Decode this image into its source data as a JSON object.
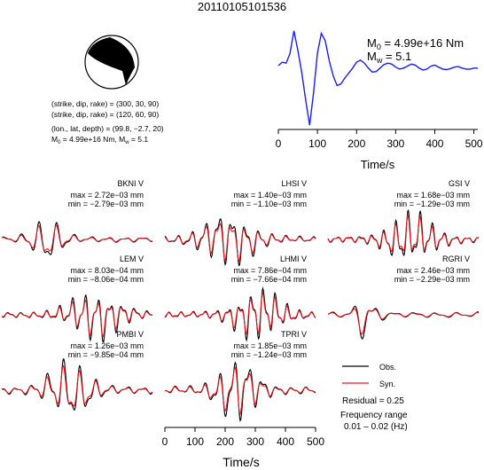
{
  "title": "20110105101536",
  "info": {
    "line1": "(strike, dip, rake) = (300, 30, 90)",
    "line2": "(strike, dip, rake) = (120, 60, 90)",
    "line3": "(lon., lat, depth) = (99.8, −2.7, 20)",
    "line4_m0": "M",
    "line4_m0_sub": "0",
    "line4_m0_val": " = 4.99e+16 Nm, M",
    "line4_mw_sub": "w",
    "line4_mw_val": " = 5.1"
  },
  "stf": {
    "m0_label": "M",
    "m0_sub": "0",
    "m0_val": " = 4.99e+16 Nm",
    "mw_label": "M",
    "mw_sub": "w",
    "mw_val": " = 5.1",
    "xlabel": "Time/s",
    "ticks": [
      "0",
      "100",
      "200",
      "300",
      "400",
      "500"
    ]
  },
  "bottom_axis": {
    "xlabel": "Time/s",
    "ticks": [
      "0",
      "100",
      "200",
      "300",
      "400",
      "500"
    ]
  },
  "legend": {
    "obs": "Obs.",
    "syn": "Syn.",
    "residual": "Residual = 0.25",
    "freq_line1": "Frequency range",
    "freq_line2": "0.01 – 0.02 (Hz)"
  },
  "colors": {
    "obs": "#000000",
    "syn": "#e8141e",
    "stf": "#1a1aff"
  },
  "chart_data": [
    {
      "type": "line",
      "title": "",
      "xlabel": "Time/s",
      "ylabel": "",
      "xlim": [
        0,
        510
      ],
      "series": [
        {
          "x": [
            0,
            10,
            20,
            30,
            40,
            50,
            60,
            70,
            80,
            90,
            100,
            110,
            120,
            130,
            140,
            150,
            160,
            170,
            180,
            190,
            200,
            210,
            220,
            230,
            240,
            250,
            260,
            270,
            280,
            290,
            300,
            310,
            320,
            330,
            340,
            350,
            360,
            370,
            380,
            390,
            400,
            410,
            420,
            430,
            440,
            450,
            460,
            470,
            480,
            490,
            500,
            510
          ],
          "y": [
            0.25,
            0.32,
            0.3,
            0.5,
            0.95,
            0.55,
            0.1,
            -0.45,
            -0.95,
            -0.3,
            0.5,
            0.9,
            0.75,
            0.35,
            0.05,
            -0.15,
            -0.12,
            0.0,
            0.1,
            0.2,
            0.32,
            0.36,
            0.3,
            0.2,
            0.12,
            0.13,
            0.2,
            0.27,
            0.3,
            0.28,
            0.22,
            0.18,
            0.2,
            0.24,
            0.28,
            0.26,
            0.2,
            0.16,
            0.18,
            0.24,
            0.26,
            0.22,
            0.18,
            0.17,
            0.19,
            0.22,
            0.23,
            0.2,
            0.18,
            0.18,
            0.2,
            0.2
          ]
        }
      ]
    },
    {
      "type": "line",
      "station": "BKNI V",
      "max": "max = 2.72e−03 mm",
      "min": "min = −2.79e−03 mm"
    },
    {
      "type": "line",
      "station": "LHSI V",
      "max": "max = 1.40e−03 mm",
      "min": "min = −1.10e−03 mm"
    },
    {
      "type": "line",
      "station": "GSI V",
      "max": "max = 1.68e−03 mm",
      "min": "min = −1.29e−03 mm"
    },
    {
      "type": "line",
      "station": "LEM V",
      "max": "max = 8.03e−04 mm",
      "min": "min = −8.06e−04 mm"
    },
    {
      "type": "line",
      "station": "LHMI V",
      "max": "max = 7.86e−04 mm",
      "min": "min = −7.66e−04 mm"
    },
    {
      "type": "line",
      "station": "RGRI V",
      "max": "max = 2.46e−03 mm",
      "min": "min = −2.29e−03 mm"
    },
    {
      "type": "line",
      "station": "PMBI V",
      "max": "max = 1.26e−03 mm",
      "min": "min = −9.85e−04 mm"
    },
    {
      "type": "line",
      "station": "TPRI V",
      "max": "max = 1.85e−03 mm",
      "min": "min = −1.24e−03 mm"
    }
  ]
}
